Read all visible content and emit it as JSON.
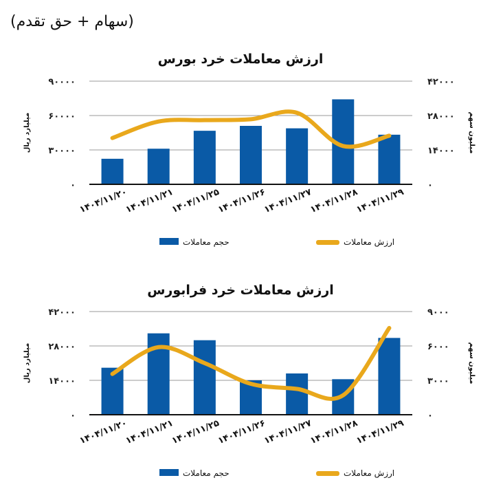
{
  "header": "(سهام + حق تقدم)",
  "colors": {
    "bars": "#0a5aa6",
    "line": "#e9a81c",
    "grid": "#9a9a9a",
    "axis": "#111111"
  },
  "chart_data": [
    {
      "type": "bar+line",
      "title": "ارزش معاملات خرد بورس",
      "categories": [
        "۱۴۰۴/۱۱/۲۰",
        "۱۴۰۴/۱۱/۲۱",
        "۱۴۰۴/۱۱/۲۵",
        "۱۴۰۴/۱۱/۲۶",
        "۱۴۰۴/۱۱/۲۷",
        "۱۴۰۴/۱۱/۲۸",
        "۱۴۰۴/۱۱/۲۹"
      ],
      "left_axis": {
        "label": "میلیارد ریال",
        "ylim": [
          0,
          90000
        ],
        "ticks": [
          0,
          30000,
          60000,
          90000
        ]
      },
      "right_axis": {
        "label": "میلیون سهم",
        "ylim": [
          0,
          42000
        ],
        "ticks": [
          0,
          14000,
          28000,
          42000
        ]
      },
      "grid": true,
      "legend": "bottom",
      "series": [
        {
          "name": "حجم معاملات",
          "type": "bar",
          "axis": "right",
          "values": [
            10400,
            14500,
            21800,
            23800,
            22800,
            34600,
            20200
          ]
        },
        {
          "name": "ارزش معاملات",
          "type": "line",
          "axis": "left",
          "values": [
            40400,
            54800,
            56000,
            56800,
            62400,
            33400,
            42400
          ]
        }
      ]
    },
    {
      "type": "bar+line",
      "title": "ارزش معاملات خرد فرابورس",
      "categories": [
        "۱۴۰۴/۱۱/۲۰",
        "۱۴۰۴/۱۱/۲۱",
        "۱۴۰۴/۱۱/۲۵",
        "۱۴۰۴/۱۱/۲۶",
        "۱۴۰۴/۱۱/۲۷",
        "۱۴۰۴/۱۱/۲۸",
        "۱۴۰۴/۱۱/۲۹"
      ],
      "left_axis": {
        "label": "میلیارد ریال",
        "ylim": [
          0,
          42000
        ],
        "ticks": [
          0,
          14000,
          28000,
          42000
        ]
      },
      "right_axis": {
        "label": "میلیون سهم",
        "ylim": [
          0,
          9000
        ],
        "ticks": [
          0,
          3000,
          6000,
          9000
        ]
      },
      "grid": true,
      "legend": "bottom",
      "series": [
        {
          "name": "حجم معاملات",
          "type": "bar",
          "axis": "right",
          "values": [
            4100,
            7100,
            6500,
            3000,
            3600,
            3100,
            6700
          ]
        },
        {
          "name": "ارزش معاملات",
          "type": "line",
          "axis": "left",
          "values": [
            16600,
            27500,
            21000,
            12600,
            10500,
            7900,
            35300
          ]
        }
      ]
    }
  ]
}
